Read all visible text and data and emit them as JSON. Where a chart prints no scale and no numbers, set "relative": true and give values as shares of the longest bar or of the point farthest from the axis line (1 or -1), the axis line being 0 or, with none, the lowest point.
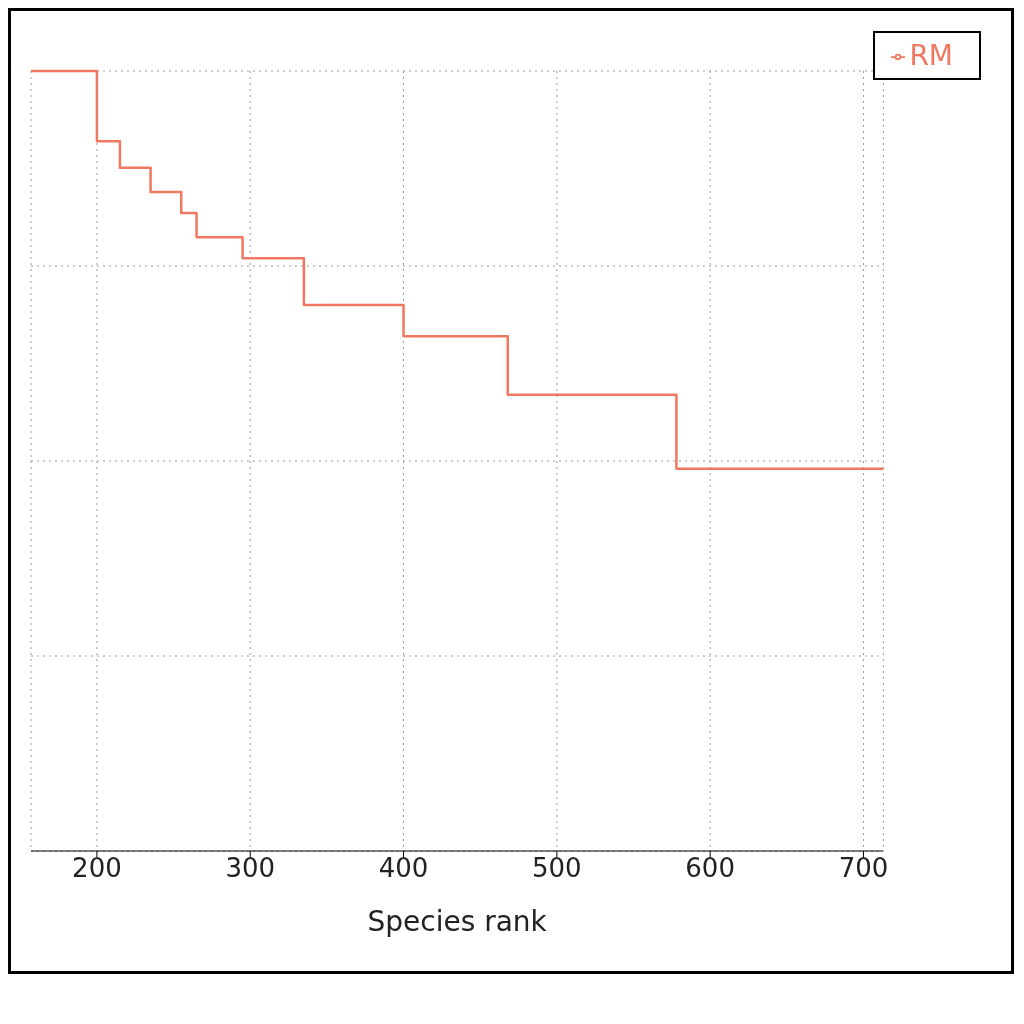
{
  "chart_data": {
    "type": "step",
    "xlabel": "Species rank",
    "relative": true,
    "x": [
      157,
      200,
      215,
      235,
      255,
      265,
      295,
      335,
      400,
      468,
      578,
      713
    ],
    "series": [
      {
        "name": "RM",
        "color": "#f07860",
        "values": [
          1.0,
          0.91,
          0.876,
          0.845,
          0.818,
          0.787,
          0.76,
          0.7,
          0.66,
          0.585,
          0.49,
          0.49
        ]
      }
    ],
    "xlim": [
      157,
      713
    ],
    "xticks": [
      200,
      300,
      400,
      500,
      600,
      700
    ],
    "grid": true,
    "legend": "top right"
  }
}
